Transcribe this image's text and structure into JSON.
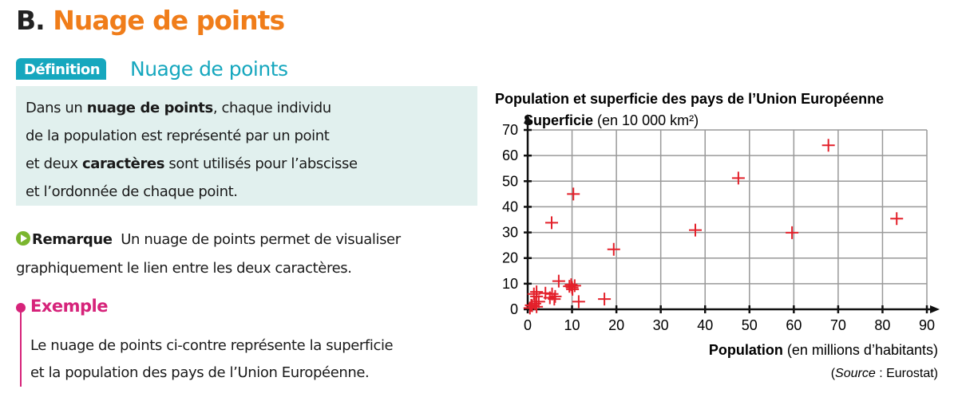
{
  "section": {
    "letter": "B.",
    "title": "Nuage de points"
  },
  "definition": {
    "tag": "Définition",
    "title": "Nuage de points",
    "text": [
      [
        "Dans un ",
        ""
      ],
      [
        "nuage de points",
        "b"
      ],
      [
        ", chaque individu",
        ""
      ]
    ],
    "lines": [
      "Dans un ",
      "nuage de points",
      ", chaque individu",
      "de la population est représenté par un point",
      "et deux ",
      "caractères",
      " sont utilisés pour l’abscisse",
      "et l’ordonnée de chaque point."
    ]
  },
  "remark": {
    "label": "Remarque",
    "text": "Un nuage de points permet de visualiser",
    "text2": "graphiquement le lien entre les deux caractères."
  },
  "example": {
    "title": "Exemple",
    "line1": "Le nuage de points ci-contre représente la superficie",
    "line2": "et la population des pays de l’Union Européenne."
  },
  "chart_data": {
    "type": "scatter",
    "title": "Population et superficie des pays de l’Union Européenne",
    "ylabel_bold": "Superficie",
    "ylabel_rest": " (en 10 000 km²)",
    "xlabel_bold": "Population",
    "xlabel_rest": " (en millions d’habitants)",
    "source_label": "Source",
    "source_rest": " : Eurostat",
    "xlim": [
      0,
      90
    ],
    "ylim": [
      0,
      70
    ],
    "xticks": [
      0,
      10,
      20,
      30,
      40,
      50,
      60,
      70,
      80,
      90
    ],
    "yticks": [
      0,
      10,
      20,
      30,
      40,
      50,
      60,
      70
    ],
    "grid": true,
    "marker": "+",
    "color": "#e3202a",
    "points": [
      [
        67.8,
        64
      ],
      [
        47.5,
        51.2
      ],
      [
        83.2,
        35.4
      ],
      [
        37.8,
        30.9
      ],
      [
        59.6,
        29.9
      ],
      [
        10.3,
        45
      ],
      [
        5.4,
        33.8
      ],
      [
        19.4,
        23.4
      ],
      [
        17.3,
        4
      ],
      [
        11.5,
        3
      ],
      [
        7,
        11
      ],
      [
        9.4,
        9
      ],
      [
        10,
        8.5
      ],
      [
        10.6,
        9.2
      ],
      [
        10.1,
        7.8
      ],
      [
        9.8,
        9.6
      ],
      [
        5.5,
        6
      ],
      [
        6.2,
        5
      ],
      [
        5,
        4.5
      ],
      [
        4,
        6.3
      ],
      [
        2,
        6.8
      ],
      [
        2,
        5
      ],
      [
        1.4,
        6
      ],
      [
        2.5,
        3
      ],
      [
        1.6,
        2.2
      ],
      [
        1,
        1.4
      ],
      [
        0.5,
        0.5
      ],
      [
        0.8,
        1.6
      ],
      [
        2,
        1
      ],
      [
        6,
        4
      ]
    ]
  }
}
